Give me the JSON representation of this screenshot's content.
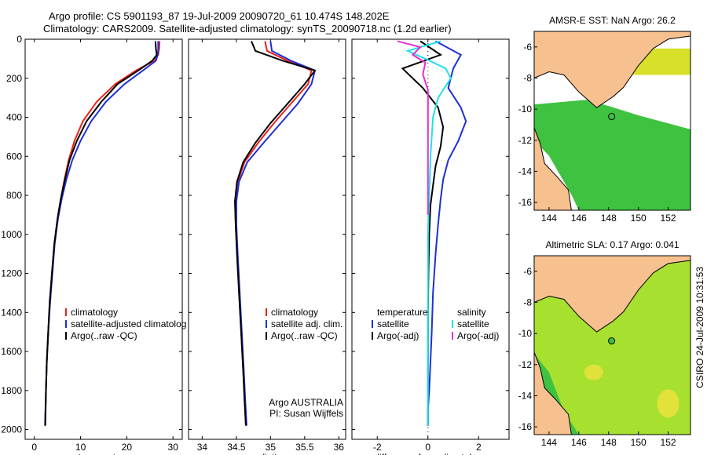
{
  "header": {
    "title_line1": "Argo profile: CS 5901193_87 19-Jul-2009 20090720_61 10.474S 148.202E",
    "title_line2": "Climatology: CARS2009. Satellite-adjusted climatology: synTS_20090718.nc (1.2d earlier)"
  },
  "side_label": "CSIRO 24-Jul-2009 10:31:53",
  "colors": {
    "climatology": "#e8231d",
    "satellite": "#1f2fd4",
    "argo": "#000000",
    "argo_adj": "#e72fd0",
    "sat_diff": "#22e0e8",
    "land": "#f7c08f",
    "ocean_green": "#3fc23f"
  },
  "chart_data": [
    {
      "type": "line",
      "xlabel": "temperature",
      "xticks": [
        0,
        10,
        20,
        30
      ],
      "yticks": [
        0,
        200,
        400,
        600,
        800,
        1000,
        1200,
        1400,
        1600,
        1800,
        2000
      ],
      "xlim": [
        -2,
        32
      ],
      "ylim": [
        2050,
        0
      ],
      "legend": [
        "climatology",
        "satellite-adjusted climatolog",
        "Argo(..raw -QC)"
      ],
      "series": [
        {
          "name": "climatology",
          "color": "#e8231d",
          "x": [
            27.1,
            27.0,
            26.8,
            26.0,
            22.0,
            17.5,
            13.5,
            10.5,
            8.7,
            7.4,
            6.5,
            5.7,
            5.0,
            4.3,
            3.8,
            3.3,
            3.0,
            2.7,
            2.5,
            2.35
          ],
          "y": [
            10,
            50,
            80,
            110,
            160,
            230,
            320,
            420,
            520,
            620,
            720,
            820,
            920,
            1050,
            1200,
            1350,
            1500,
            1650,
            1800,
            1980
          ]
        },
        {
          "name": "satellite-adjusted climatology",
          "color": "#1f2fd4",
          "x": [
            26.8,
            26.8,
            26.7,
            26.3,
            23.5,
            19.5,
            15.5,
            12.3,
            10.0,
            8.2,
            6.9,
            5.9,
            5.1,
            4.4,
            3.9,
            3.4,
            3.0,
            2.7,
            2.5,
            2.3
          ],
          "y": [
            10,
            50,
            80,
            110,
            160,
            230,
            320,
            420,
            520,
            620,
            720,
            820,
            920,
            1050,
            1200,
            1350,
            1500,
            1650,
            1800,
            1980
          ]
        },
        {
          "name": "Argo(..raw -QC)",
          "color": "#000000",
          "x": [
            26.2,
            26.3,
            26.5,
            25.5,
            22.5,
            18.0,
            14.5,
            11.3,
            9.2,
            7.6,
            6.6,
            5.7,
            5.0,
            4.3,
            3.8,
            3.3,
            3.0,
            2.7,
            2.5,
            2.35
          ],
          "y": [
            10,
            50,
            80,
            110,
            160,
            230,
            320,
            420,
            520,
            620,
            720,
            820,
            920,
            1050,
            1200,
            1350,
            1500,
            1650,
            1800,
            1980
          ]
        }
      ]
    },
    {
      "type": "line",
      "xlabel": "salinity",
      "xticks": [
        34,
        34.5,
        35,
        35.5,
        36
      ],
      "xlim": [
        33.8,
        36.1
      ],
      "ylim": [
        2050,
        0
      ],
      "legend": [
        "climatology",
        "satellite adj. clim.",
        "Argo(..raw -QC)"
      ],
      "annotation": [
        "Argo AUSTRALIA",
        "PI: Susan Wijffels"
      ],
      "series": [
        {
          "name": "climatology",
          "color": "#e8231d",
          "x": [
            34.92,
            34.95,
            35.25,
            35.6,
            35.55,
            35.3,
            35.05,
            34.82,
            34.62,
            34.52,
            34.48,
            34.49,
            34.51,
            34.54,
            34.57,
            34.6,
            34.62,
            34.64
          ],
          "y": [
            10,
            60,
            110,
            160,
            230,
            330,
            430,
            530,
            630,
            730,
            830,
            950,
            1100,
            1300,
            1500,
            1700,
            1850,
            1980
          ]
        },
        {
          "name": "satellite adj. clim.",
          "color": "#1f2fd4",
          "x": [
            35.0,
            35.02,
            35.3,
            35.65,
            35.6,
            35.4,
            35.15,
            34.9,
            34.66,
            34.54,
            34.5,
            34.5,
            34.52,
            34.55,
            34.58,
            34.61,
            34.63,
            34.65
          ],
          "y": [
            10,
            60,
            110,
            160,
            230,
            330,
            430,
            530,
            630,
            730,
            830,
            950,
            1100,
            1300,
            1500,
            1700,
            1850,
            1980
          ]
        },
        {
          "name": "Argo(..raw -QC)",
          "color": "#000000",
          "x": [
            34.72,
            34.78,
            35.18,
            35.65,
            35.5,
            35.25,
            35.0,
            34.78,
            34.6,
            34.51,
            34.48,
            34.49,
            34.51,
            34.54,
            34.57,
            34.6,
            34.62,
            34.64
          ],
          "y": [
            10,
            60,
            110,
            160,
            230,
            330,
            430,
            530,
            630,
            730,
            830,
            950,
            1100,
            1300,
            1500,
            1700,
            1850,
            1980
          ]
        }
      ]
    },
    {
      "type": "line",
      "xlabel": "difference from climatology",
      "xticks": [
        -2,
        0,
        2
      ],
      "xlim": [
        -3,
        3.2
      ],
      "ylim": [
        2050,
        0
      ],
      "legend_temperature": [
        "temperature",
        "satellite",
        "Argo(-adj)"
      ],
      "legend_salinity": [
        "salinity",
        "satellite",
        "Argo(-adj)"
      ],
      "series": [
        {
          "name": "temperature satellite",
          "color": "#1f2fd4",
          "x": [
            0.3,
            1.3,
            1.0,
            0.8,
            1.3,
            1.5,
            1.2,
            0.8,
            0.6,
            0.5,
            0.4,
            0.3,
            0.2,
            0.15,
            0.1,
            0.05,
            0.0,
            0.0
          ],
          "y": [
            10,
            80,
            150,
            250,
            350,
            420,
            520,
            620,
            720,
            820,
            950,
            1100,
            1300,
            1500,
            1650,
            1800,
            1900,
            1980
          ]
        },
        {
          "name": "temperature Argo(-adj)",
          "color": "#000000",
          "x": [
            -0.3,
            0.5,
            -1.0,
            -0.6,
            -0.2,
            0.4,
            0.6,
            0.5,
            0.3,
            0.2,
            0.1,
            0.05,
            0.02,
            0.0,
            0.0,
            0.0
          ],
          "y": [
            10,
            80,
            150,
            200,
            250,
            350,
            450,
            550,
            650,
            750,
            850,
            1000,
            1200,
            1400,
            1700,
            1980
          ]
        },
        {
          "name": "salinity satellite",
          "color": "#22e0e8",
          "x": [
            0.5,
            -0.8,
            -0.1,
            0.7,
            0.9,
            0.4,
            0.2,
            0.1,
            0.05,
            0.0,
            0.0,
            0.0,
            0.0
          ],
          "y": [
            10,
            60,
            100,
            150,
            200,
            300,
            400,
            600,
            800,
            1000,
            1300,
            1600,
            1980
          ]
        },
        {
          "name": "salinity Argo(-adj)",
          "color": "#e72fd0",
          "x": [
            -1.2,
            -0.3,
            -0.6,
            -0.1,
            -0.2,
            0.0,
            0.0,
            0.0,
            0.0
          ],
          "y": [
            10,
            40,
            80,
            120,
            180,
            260,
            400,
            600,
            900
          ]
        }
      ]
    },
    {
      "type": "heatmap",
      "title": "AMSR-E SST: NaN Argo: 26.2",
      "xticks": [
        144,
        146,
        148,
        150,
        152
      ],
      "yticks": [
        -6,
        -8,
        -10,
        -12,
        -14,
        -16
      ],
      "xlim": [
        143,
        153.5
      ],
      "ylim": [
        -16.5,
        -5
      ]
    },
    {
      "type": "heatmap",
      "title": "Altimetric SLA: 0.17 Argo: 0.041",
      "xticks": [
        144,
        146,
        148,
        150,
        152
      ],
      "yticks": [
        -6,
        -8,
        -10,
        -12,
        -14,
        -16
      ],
      "xlim": [
        143,
        153.5
      ],
      "ylim": [
        -16.5,
        -5
      ]
    }
  ]
}
